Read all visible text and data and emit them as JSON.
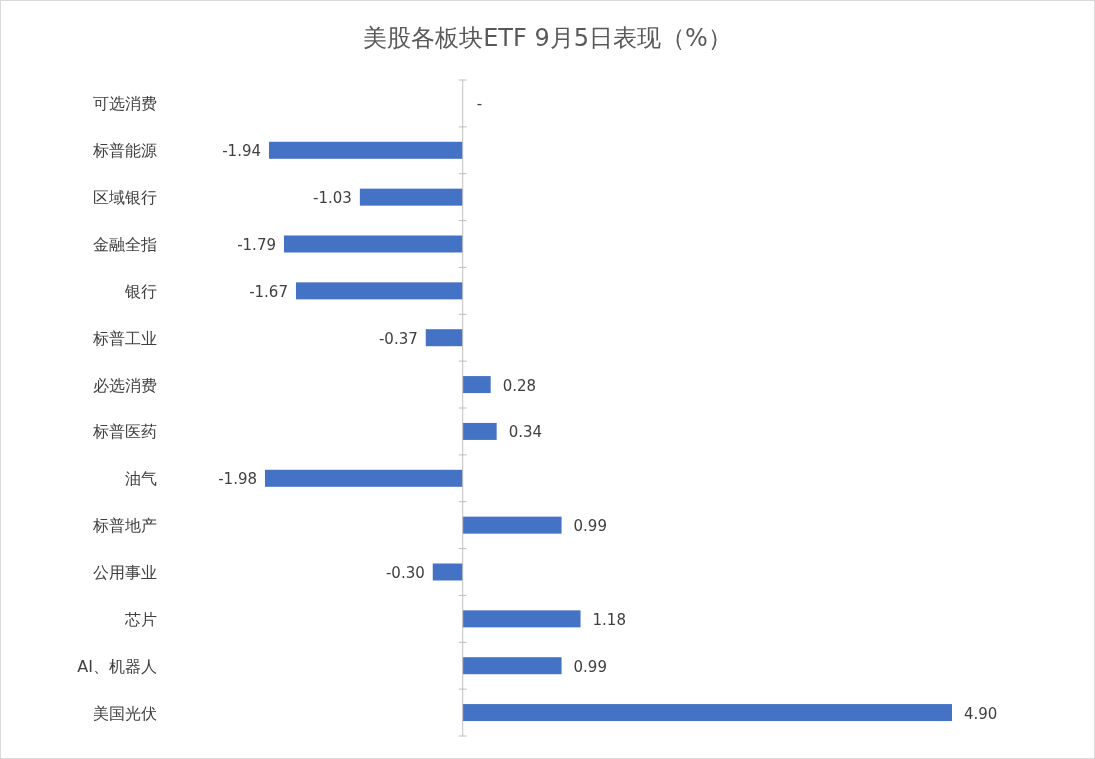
{
  "chart_data": {
    "type": "bar",
    "orientation": "horizontal",
    "title": "美股各板块ETF  9月5日表现（%）",
    "color": "#4472c4",
    "categories": [
      "可选消费",
      "标普能源",
      "区域银行",
      "金融全指",
      "银行",
      "标普工业",
      "必选消费",
      "标普医药",
      "油气",
      "标普地产",
      "公用事业",
      "芯片",
      "AI、机器人",
      "美国光伏"
    ],
    "values": [
      null,
      -1.94,
      -1.03,
      -1.79,
      -1.67,
      -0.37,
      0.28,
      0.34,
      -1.98,
      0.99,
      -0.3,
      1.18,
      0.99,
      4.9
    ],
    "value_labels": [
      "-",
      "-1.94",
      "-1.03",
      "-1.79",
      "-1.67",
      "-0.37",
      "0.28",
      "0.34",
      "-1.98",
      "0.99",
      "-0.30",
      "1.18",
      "0.99",
      "4.90"
    ]
  }
}
